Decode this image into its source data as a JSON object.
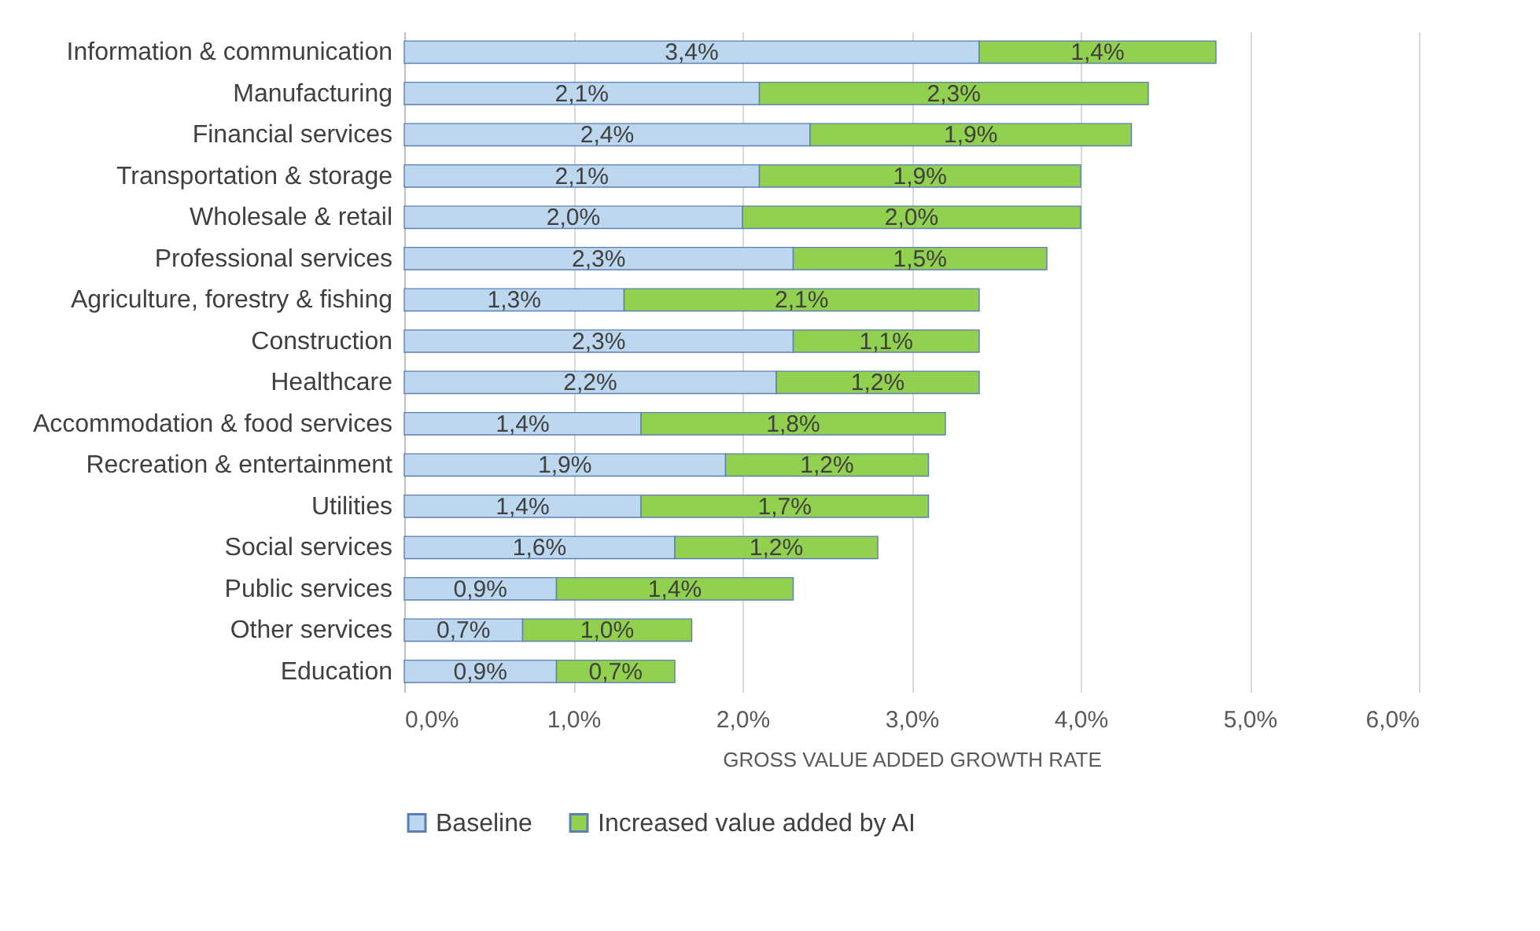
{
  "chart_data": {
    "type": "bar",
    "orientation": "horizontal",
    "stacked": true,
    "categories": [
      "Information & communication",
      "Manufacturing",
      "Financial services",
      "Transportation & storage",
      "Wholesale & retail",
      "Professional services",
      "Agriculture, forestry & fishing",
      "Construction",
      "Healthcare",
      "Accommodation & food services",
      "Recreation & entertainment",
      "Utilities",
      "Social services",
      "Public services",
      "Other services",
      "Education"
    ],
    "series": [
      {
        "name": "Baseline",
        "color": "#bdd7ee",
        "values": [
          3.4,
          2.1,
          2.4,
          2.1,
          2.0,
          2.3,
          1.3,
          2.3,
          2.2,
          1.4,
          1.9,
          1.4,
          1.6,
          0.9,
          0.7,
          0.9
        ],
        "value_labels": [
          "3,4%",
          "2,1%",
          "2,4%",
          "2,1%",
          "2,0%",
          "2,3%",
          "1,3%",
          "2,3%",
          "2,2%",
          "1,4%",
          "1,9%",
          "1,4%",
          "1,6%",
          "0,9%",
          "0,7%",
          "0,9%"
        ]
      },
      {
        "name": "Increased value added by AI",
        "color": "#92d050",
        "values": [
          1.4,
          2.3,
          1.9,
          1.9,
          2.0,
          1.5,
          2.1,
          1.1,
          1.2,
          1.8,
          1.2,
          1.7,
          1.2,
          1.4,
          1.0,
          0.7
        ],
        "value_labels": [
          "1,4%",
          "2,3%",
          "1,9%",
          "1,9%",
          "2,0%",
          "1,5%",
          "2,1%",
          "1,1%",
          "1,2%",
          "1,8%",
          "1,2%",
          "1,7%",
          "1,2%",
          "1,4%",
          "1,0%",
          "0,7%"
        ]
      }
    ],
    "xlabel": "GROSS VALUE ADDED GROWTH RATE",
    "xlim": [
      0,
      6
    ],
    "xticks": [
      {
        "value": 0,
        "label": "0,0%"
      },
      {
        "value": 1,
        "label": "1,0%"
      },
      {
        "value": 2,
        "label": "2,0%"
      },
      {
        "value": 3,
        "label": "3,0%"
      },
      {
        "value": 4,
        "label": "4,0%"
      },
      {
        "value": 5,
        "label": "5,0%"
      },
      {
        "value": 6,
        "label": "6,0%"
      }
    ],
    "grid": "x",
    "legend": "bottom"
  }
}
